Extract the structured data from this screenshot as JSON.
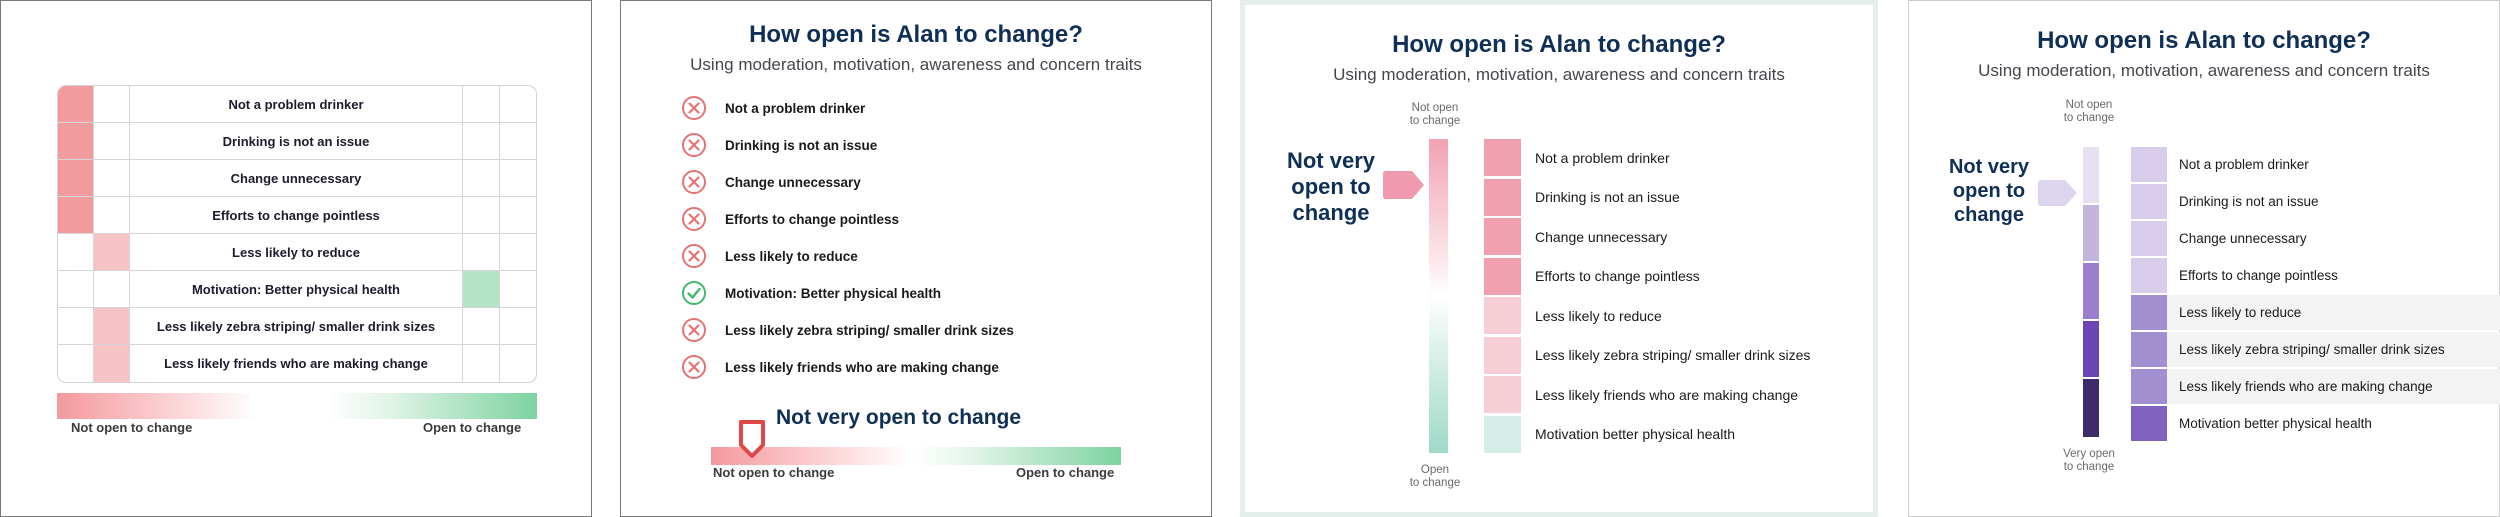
{
  "panel1": {
    "rows": [
      "Not a problem drinker",
      "Drinking is not an issue",
      "Change unnecessary",
      "Efforts to change pointless",
      "Less likely to reduce",
      "Motivation: Better physical health",
      "Less likely zebra striping/ smaller drink sizes",
      "Less likely friends who are making change"
    ],
    "legend_left": "Not open to change",
    "legend_right": "Open to change",
    "colors": {
      "red_strong": "#f29b9e",
      "red_light": "#f8c3c5",
      "green_light": "#b3e4c6"
    }
  },
  "panel2": {
    "title": "How open is Alan to change?",
    "subtitle": "Using moderation, motivation, awareness and concern traits",
    "items": [
      {
        "label": "Not a problem drinker",
        "icon": "x-circle-icon"
      },
      {
        "label": "Drinking is not an issue",
        "icon": "x-circle-icon"
      },
      {
        "label": "Change unnecessary",
        "icon": "x-circle-icon"
      },
      {
        "label": "Efforts to change pointless",
        "icon": "x-circle-icon"
      },
      {
        "label": "Less likely to reduce",
        "icon": "x-circle-icon"
      },
      {
        "label": "Motivation: Better physical health",
        "icon": "check-circle-icon"
      },
      {
        "label": "Less likely zebra striping/ smaller drink sizes",
        "icon": "x-circle-icon"
      },
      {
        "label": "Less likely friends who are making change",
        "icon": "x-circle-icon"
      }
    ],
    "verdict": "Not very open to change",
    "scale_left": "Not open to change",
    "scale_right": "Open to change",
    "marker_level": 0.1
  },
  "panel3": {
    "title": "How open is Alan to change?",
    "subtitle": "Using moderation, motivation, awareness and concern traits",
    "top_label_1": "Not open",
    "top_label_2": "to change",
    "bottom_label_1": "Open",
    "bottom_label_2": "to change",
    "verdict_1": "Not very",
    "verdict_2": "open to",
    "verdict_3": "change",
    "rows": [
      "Not a problem drinker",
      "Drinking is not an issue",
      "Change unnecessary",
      "Efforts to change pointless",
      "Less likely to reduce",
      "Less likely zebra striping/ smaller drink sizes",
      "Less likely friends who are making change",
      "Motivation better physical health"
    ],
    "swatch_colors": [
      "#ef9fae",
      "#ef9fae",
      "#ef9fae",
      "#ef9fae",
      "#f6cfd6",
      "#f6cfd6",
      "#f6cfd6",
      "#d4ede6"
    ]
  },
  "panel4": {
    "title": "How open is Alan to change?",
    "subtitle": "Using moderation, motivation, awareness and concern traits",
    "top_label_1": "Not open",
    "top_label_2": "to change",
    "bottom_label_1": "Very open",
    "bottom_label_2": "to change",
    "verdict_1": "Not very",
    "verdict_2": "open to",
    "verdict_3": "change",
    "rows": [
      "Not a problem drinker",
      "Drinking is not an issue",
      "Change unnecessary",
      "Efforts to change pointless",
      "Less likely to reduce",
      "Less likely zebra striping/ smaller drink sizes",
      "Less likely friends who are making change",
      "Motivation better physical health"
    ],
    "swatch_colors": [
      "#d8cdea",
      "#d8cdea",
      "#d8cdea",
      "#d8cdea",
      "#a18fcf",
      "#a18fcf",
      "#a18fcf",
      "#8161bf"
    ],
    "scale_colors": [
      "#e6e0f1",
      "#c3b5df",
      "#9a7fcc",
      "#6b45b3",
      "#3f2a6b"
    ]
  }
}
